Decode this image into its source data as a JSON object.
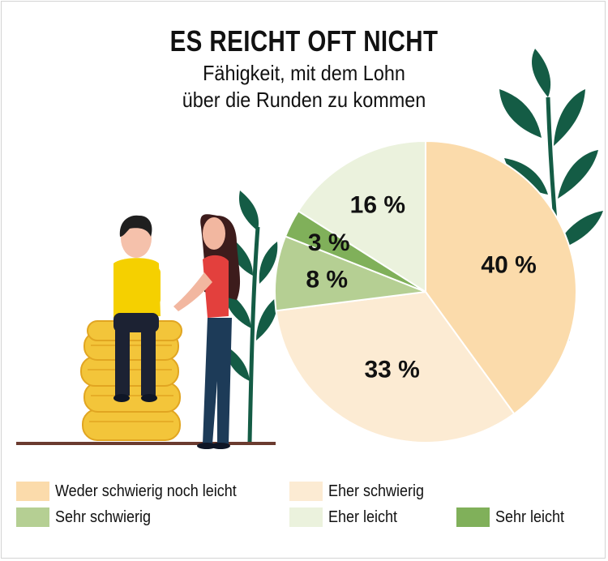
{
  "header": {
    "title": "ES REICHT OFT NICHT",
    "subtitle_line1": "Fähigkeit, mit dem Lohn",
    "subtitle_line2": "über die Runden zu kommen"
  },
  "chart_data": {
    "type": "pie",
    "title": "ES REICHT OFT NICHT",
    "subtitle": "Fähigkeit, mit dem Lohn über die Runden zu kommen",
    "slices": [
      {
        "name": "Weder schwierig noch leicht",
        "value": 40,
        "label": "40 %",
        "color": "#fbdbab"
      },
      {
        "name": "Eher schwierig",
        "value": 33,
        "label": "33 %",
        "color": "#fcebd3"
      },
      {
        "name": "Sehr schwierig",
        "value": 8,
        "label": "8 %",
        "color": "#b5cf93"
      },
      {
        "name": "Sehr leicht",
        "value": 3,
        "label": "3 %",
        "color": "#80b05a"
      },
      {
        "name": "Eher leicht",
        "value": 16,
        "label": "16 %",
        "color": "#ebf2dd"
      }
    ],
    "legend_position": "bottom"
  },
  "legend": {
    "items": [
      {
        "label": "Weder schwierig noch leicht",
        "color": "#fbdbab"
      },
      {
        "label": "Eher schwierig",
        "color": "#fcebd3"
      },
      {
        "label": "Sehr schwierig",
        "color": "#b5cf93"
      },
      {
        "label": "Eher leicht",
        "color": "#ebf2dd"
      },
      {
        "label": "Sehr leicht",
        "color": "#80b05a"
      }
    ]
  },
  "colors": {
    "leaf_dark": "#145c45",
    "coin": "#f3c53a",
    "ground": "#6b3b2f"
  },
  "icons": [
    "plant-icon",
    "coin-stack-icon",
    "man-figure-icon",
    "woman-figure-icon"
  ]
}
